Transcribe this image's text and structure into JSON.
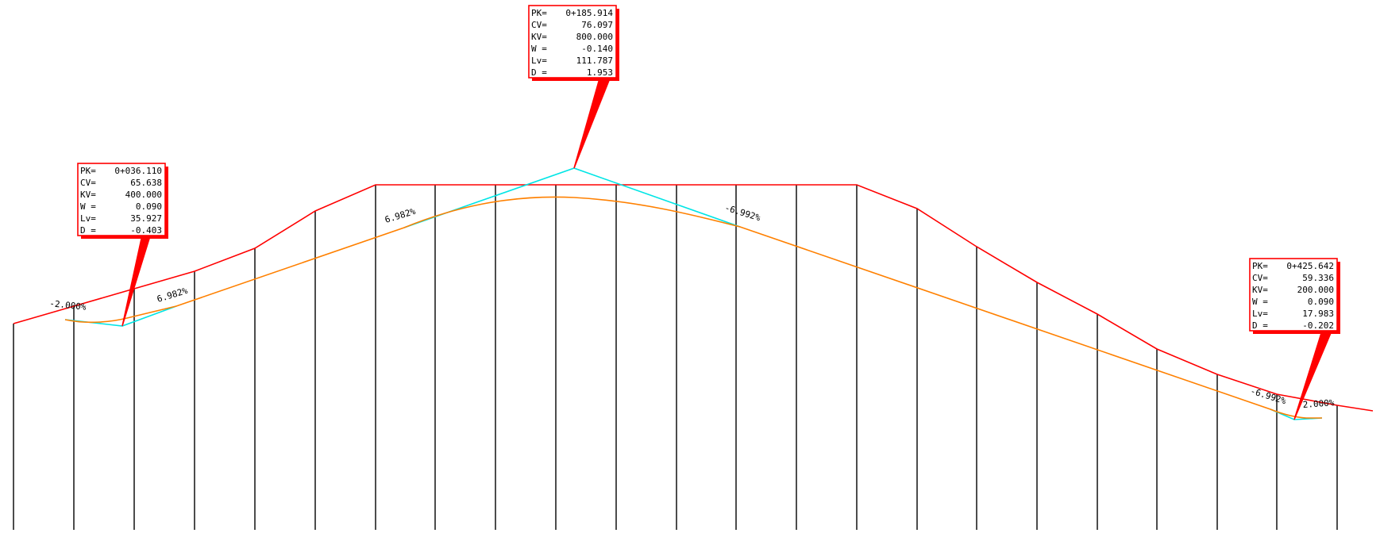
{
  "colors": {
    "terrain": "#ff0000",
    "grade_line": "#ff8000",
    "tangent": "#00e5e5",
    "stations": "#000000",
    "callout_border": "#ff0000",
    "callout_shadow": "#ff0000",
    "text": "#000000"
  },
  "grade_labels": [
    {
      "id": "g1",
      "text": "-2.000%"
    },
    {
      "id": "g2",
      "text": "6.982%"
    },
    {
      "id": "g3",
      "text": "6.982%"
    },
    {
      "id": "g4",
      "text": "-6.992%"
    },
    {
      "id": "g5",
      "text": "-6.992%"
    },
    {
      "id": "g6",
      "text": "2.000%"
    }
  ],
  "vertical_curves": [
    {
      "id": "vc1",
      "fields": [
        {
          "key": "PK=",
          "value": "0+036.110"
        },
        {
          "key": "CV=",
          "value": "65.638"
        },
        {
          "key": "KV=",
          "value": "400.000"
        },
        {
          "key": "W  =",
          "value": "0.090"
        },
        {
          "key": "Lv=",
          "value": "35.927"
        },
        {
          "key": "D  =",
          "value": "-0.403"
        }
      ]
    },
    {
      "id": "vc2",
      "fields": [
        {
          "key": "PK=",
          "value": "0+185.914"
        },
        {
          "key": "CV=",
          "value": "76.097"
        },
        {
          "key": "KV=",
          "value": "800.000"
        },
        {
          "key": "W  =",
          "value": "-0.140"
        },
        {
          "key": "Lv=",
          "value": "111.787"
        },
        {
          "key": "D  =",
          "value": "1.953"
        }
      ]
    },
    {
      "id": "vc3",
      "fields": [
        {
          "key": "PK=",
          "value": "0+425.642"
        },
        {
          "key": "CV=",
          "value": "59.336"
        },
        {
          "key": "KV=",
          "value": "200.000"
        },
        {
          "key": "W  =",
          "value": "0.090"
        },
        {
          "key": "Lv=",
          "value": "17.983"
        },
        {
          "key": "D  =",
          "value": "-0.202"
        }
      ]
    }
  ]
}
